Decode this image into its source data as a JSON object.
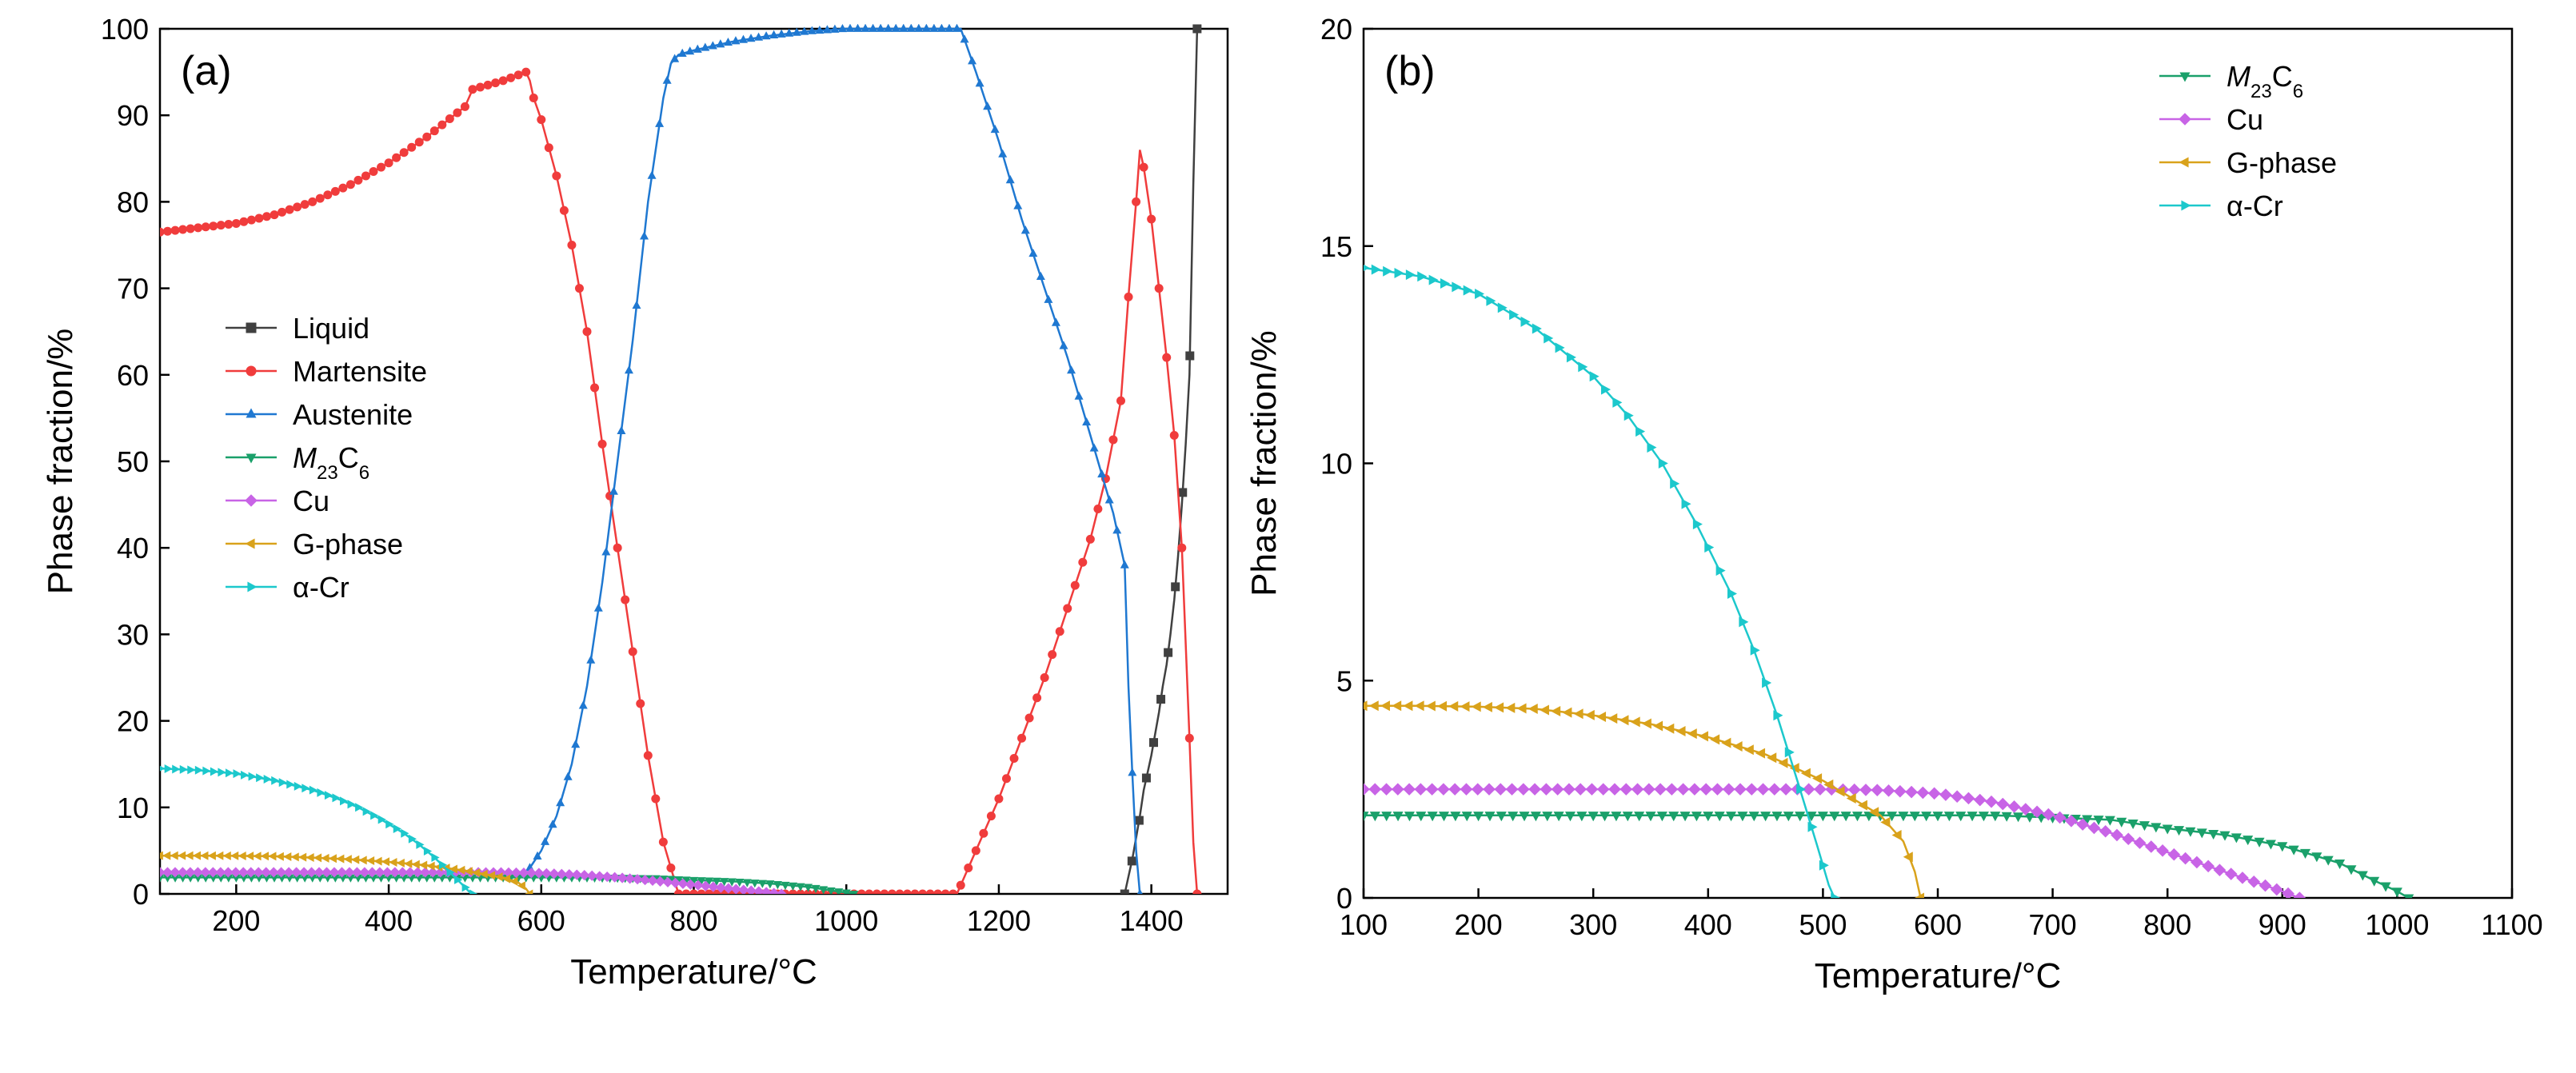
{
  "chart_data": [
    {
      "type": "line",
      "panel_label": "(a)",
      "xlabel": "Temperature/°C",
      "ylabel": "Phase fraction/%",
      "xlim": [
        100,
        1500
      ],
      "ylim": [
        0,
        100
      ],
      "xticks": [
        200,
        400,
        600,
        800,
        1000,
        1200,
        1400
      ],
      "yticks": [
        0,
        10,
        20,
        30,
        40,
        50,
        60,
        70,
        80,
        90,
        100
      ],
      "legend_position": "center-left",
      "series": [
        {
          "name": "Liquid",
          "name_html": "Liquid",
          "color": "#404040",
          "marker": "square",
          "x": [
            1365,
            1370,
            1375,
            1380,
            1385,
            1390,
            1395,
            1400,
            1405,
            1410,
            1415,
            1420,
            1425,
            1430,
            1435,
            1440,
            1445,
            1450,
            1455,
            1460
          ],
          "y": [
            0,
            2,
            4,
            6.5,
            9,
            12,
            14,
            16,
            18.5,
            21,
            24,
            26.5,
            30,
            34,
            39,
            45,
            52,
            60,
            82,
            100
          ]
        },
        {
          "name": "Martensite",
          "name_html": "Martensite",
          "color": "#f03c3c",
          "marker": "circle",
          "x": [
            100,
            150,
            200,
            250,
            300,
            350,
            400,
            450,
            500,
            510,
            550,
            580,
            585,
            590,
            600,
            620,
            640,
            660,
            680,
            700,
            720,
            740,
            760,
            780,
            1145,
            1170,
            1200,
            1230,
            1260,
            1290,
            1320,
            1340,
            1360,
            1370,
            1380,
            1385,
            1390,
            1400,
            1410,
            1420,
            1430,
            1440,
            1450,
            1455,
            1460
          ],
          "y": [
            76.5,
            77,
            77.5,
            78.5,
            80,
            82,
            84.5,
            87.5,
            91,
            93,
            94,
            95,
            94,
            92,
            89.5,
            83,
            75,
            65,
            52,
            40,
            28,
            16,
            6,
            0,
            0,
            5,
            11,
            18,
            25,
            33,
            41,
            48,
            57,
            69,
            80,
            86,
            84,
            78,
            70,
            62,
            53,
            40,
            18,
            6,
            0
          ]
        },
        {
          "name": "Austenite",
          "name_html": "Austenite",
          "color": "#1f78d1",
          "marker": "triangle-up",
          "x": [
            585,
            600,
            620,
            640,
            660,
            680,
            700,
            720,
            740,
            760,
            770,
            780,
            800,
            850,
            900,
            950,
            1000,
            1050,
            1100,
            1150,
            1170,
            1200,
            1230,
            1260,
            1290,
            1320,
            1340,
            1350,
            1360,
            1365,
            1370,
            1375,
            1380,
            1385
          ],
          "y": [
            3,
            5,
            9,
            15,
            24,
            36,
            50,
            64,
            80,
            92,
            96,
            97,
            97.5,
            98.5,
            99.2,
            99.7,
            100,
            100,
            100,
            100,
            95,
            87,
            78,
            70,
            62,
            53,
            47,
            44,
            40,
            38,
            24,
            14,
            5,
            0
          ]
        },
        {
          "name": "M23C6",
          "name_html": "<tspan font-style='italic'>M</tspan><tspan baseline-shift='sub' font-size='24px'>23</tspan><tspan>C</tspan><tspan baseline-shift='sub' font-size='24px'>6</tspan>",
          "color": "#1aa06a",
          "marker": "triangle-down",
          "x": [
            100,
            200,
            300,
            400,
            500,
            600,
            650,
            700,
            750,
            800,
            850,
            900,
            950,
            980,
            1000,
            1010
          ],
          "y": [
            1.9,
            1.9,
            1.9,
            1.9,
            1.9,
            1.9,
            1.9,
            1.85,
            1.8,
            1.6,
            1.45,
            1.2,
            0.8,
            0.4,
            0.15,
            0
          ]
        },
        {
          "name": "Cu",
          "name_html": "Cu",
          "color": "#c864e6",
          "marker": "diamond",
          "x": [
            100,
            200,
            300,
            400,
            500,
            550,
            600,
            650,
            700,
            750,
            800,
            850,
            900,
            915
          ],
          "y": [
            2.5,
            2.5,
            2.5,
            2.5,
            2.5,
            2.48,
            2.4,
            2.2,
            1.9,
            1.5,
            1.05,
            0.6,
            0.15,
            0
          ]
        },
        {
          "name": "G-phase",
          "name_html": "G-phase",
          "color": "#d9a21b",
          "marker": "triangle-left",
          "x": [
            100,
            150,
            200,
            250,
            300,
            350,
            400,
            450,
            500,
            550,
            570,
            580,
            585
          ],
          "y": [
            4.42,
            4.42,
            4.4,
            4.35,
            4.2,
            4.0,
            3.7,
            3.3,
            2.7,
            1.9,
            1.3,
            0.6,
            0
          ]
        },
        {
          "name": "α-Cr",
          "name_html": "α-Cr",
          "color": "#1cc8cc",
          "marker": "triangle-right",
          "x": [
            100,
            150,
            200,
            250,
            300,
            330,
            360,
            390,
            420,
            440,
            460,
            480,
            495,
            505,
            510
          ],
          "y": [
            14.5,
            14.3,
            13.9,
            13.1,
            12,
            11.1,
            10,
            8.6,
            7,
            5.7,
            4.2,
            2.5,
            1.2,
            0.3,
            0
          ]
        }
      ]
    },
    {
      "type": "line",
      "panel_label": "(b)",
      "xlabel": "Temperature/°C",
      "ylabel": "Phase fraction/%",
      "xlim": [
        100,
        1100
      ],
      "ylim": [
        0,
        20
      ],
      "xticks": [
        100,
        200,
        300,
        400,
        500,
        600,
        700,
        800,
        900,
        1000,
        1100
      ],
      "yticks": [
        0,
        5,
        10,
        15,
        20
      ],
      "legend_position": "top-right",
      "series": [
        {
          "name": "M23C6",
          "name_html": "<tspan font-style='italic'>M</tspan><tspan baseline-shift='sub' font-size='24px'>23</tspan><tspan>C</tspan><tspan baseline-shift='sub' font-size='24px'>6</tspan>",
          "color": "#1aa06a",
          "marker": "triangle-down",
          "x": [
            100,
            200,
            300,
            400,
            500,
            600,
            650,
            700,
            750,
            800,
            850,
            900,
            950,
            980,
            1000,
            1010
          ],
          "y": [
            1.9,
            1.9,
            1.9,
            1.9,
            1.9,
            1.9,
            1.9,
            1.85,
            1.8,
            1.6,
            1.45,
            1.2,
            0.8,
            0.4,
            0.15,
            0
          ]
        },
        {
          "name": "Cu",
          "name_html": "Cu",
          "color": "#c864e6",
          "marker": "diamond",
          "x": [
            100,
            200,
            300,
            400,
            500,
            550,
            600,
            650,
            700,
            750,
            800,
            850,
            900,
            915
          ],
          "y": [
            2.5,
            2.5,
            2.5,
            2.5,
            2.5,
            2.48,
            2.4,
            2.2,
            1.9,
            1.5,
            1.05,
            0.6,
            0.15,
            0
          ]
        },
        {
          "name": "G-phase",
          "name_html": "G-phase",
          "color": "#d9a21b",
          "marker": "triangle-left",
          "x": [
            100,
            150,
            200,
            250,
            300,
            350,
            400,
            450,
            500,
            550,
            570,
            580,
            585
          ],
          "y": [
            4.42,
            4.42,
            4.4,
            4.35,
            4.2,
            4.0,
            3.7,
            3.3,
            2.7,
            1.9,
            1.3,
            0.6,
            0
          ]
        },
        {
          "name": "α-Cr",
          "name_html": "α-Cr",
          "color": "#1cc8cc",
          "marker": "triangle-right",
          "x": [
            100,
            150,
            200,
            250,
            300,
            330,
            360,
            390,
            420,
            440,
            460,
            480,
            495,
            505,
            510
          ],
          "y": [
            14.5,
            14.3,
            13.9,
            13.1,
            12,
            11.1,
            10,
            8.6,
            7,
            5.7,
            4.2,
            2.5,
            1.2,
            0.3,
            0
          ]
        }
      ]
    }
  ]
}
